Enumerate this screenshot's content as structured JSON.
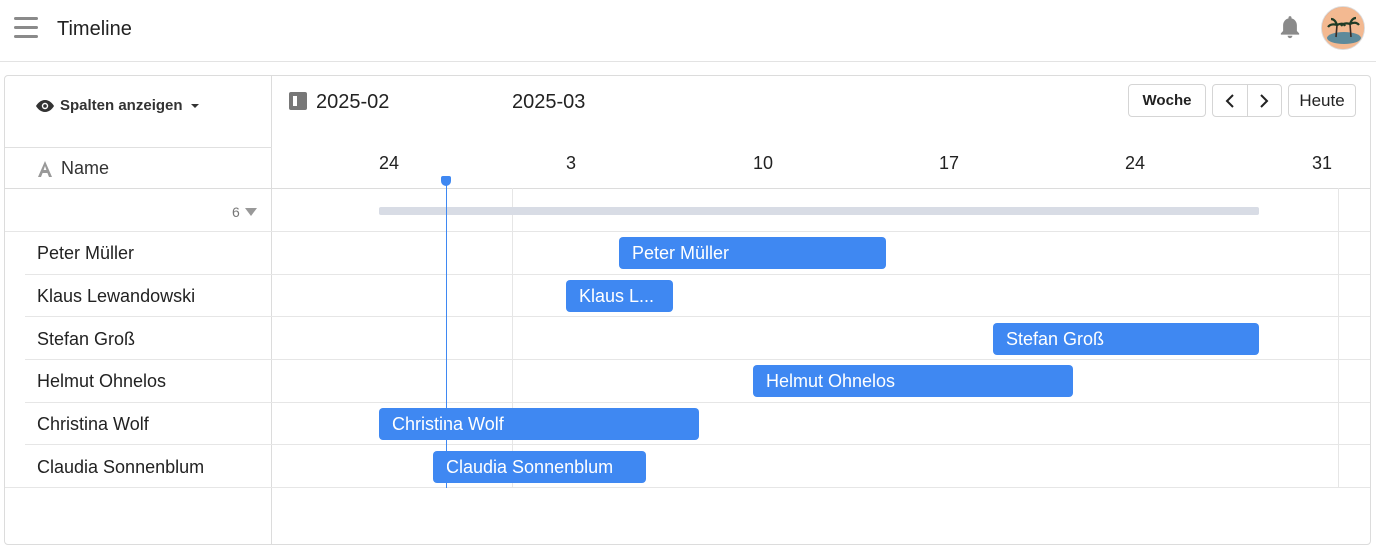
{
  "app": {
    "title": "Timeline",
    "menu_icon": "hamburger-icon",
    "bell_icon": "bell-icon",
    "avatar": "user-avatar"
  },
  "toolbar": {
    "columns_label": "Spalten anzeigen",
    "months": [
      "2025-02",
      "2025-03"
    ],
    "week_label": "Woche",
    "prev_label": "‹",
    "next_label": "›",
    "today_label": "Heute"
  },
  "table": {
    "name_header": "Name",
    "group_count": "6",
    "rows": [
      {
        "name": "Peter Müller",
        "bar_label": "Peter Müller"
      },
      {
        "name": "Klaus Lewandowski",
        "bar_label": "Klaus L..."
      },
      {
        "name": "Stefan Groß",
        "bar_label": "Stefan Groß"
      },
      {
        "name": "Helmut Ohnelos",
        "bar_label": "Helmut Ohnelos"
      },
      {
        "name": "Christina Wolf",
        "bar_label": "Christina Wolf"
      },
      {
        "name": "Claudia Sonnenblum",
        "bar_label": "Claudia Sonnenblum"
      }
    ]
  },
  "days": [
    "24",
    "3",
    "10",
    "17",
    "24",
    "31"
  ],
  "colors": {
    "accent": "#3f88f2",
    "summary": "#d8dce5"
  }
}
